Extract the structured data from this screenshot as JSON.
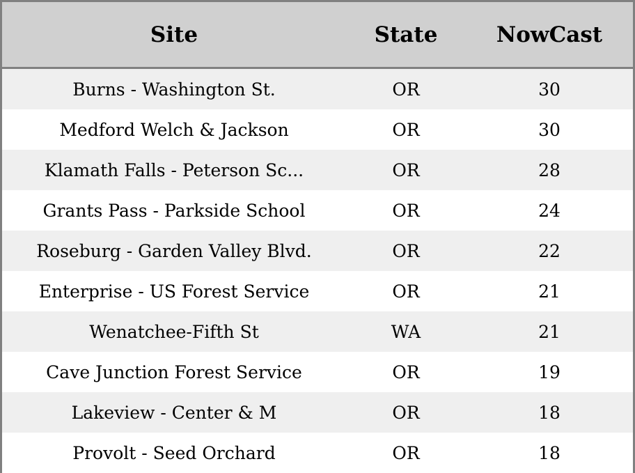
{
  "table": {
    "headers": [
      "Site",
      "State",
      "NowCast"
    ],
    "rows": [
      [
        "Burns - Washington St.",
        "OR",
        "30"
      ],
      [
        "Medford Welch & Jackson",
        "OR",
        "30"
      ],
      [
        "Klamath Falls - Peterson Sc...",
        "OR",
        "28"
      ],
      [
        "Grants Pass - Parkside School",
        "OR",
        "24"
      ],
      [
        "Roseburg - Garden Valley Blvd.",
        "OR",
        "22"
      ],
      [
        "Enterprise - US Forest Service",
        "OR",
        "21"
      ],
      [
        "Wenatchee-Fifth St",
        "WA",
        "21"
      ],
      [
        "Cave Junction Forest Service",
        "OR",
        "19"
      ],
      [
        "Lakeview - Center & M",
        "OR",
        "18"
      ],
      [
        "Provolt - Seed Orchard",
        "OR",
        "18"
      ]
    ]
  }
}
